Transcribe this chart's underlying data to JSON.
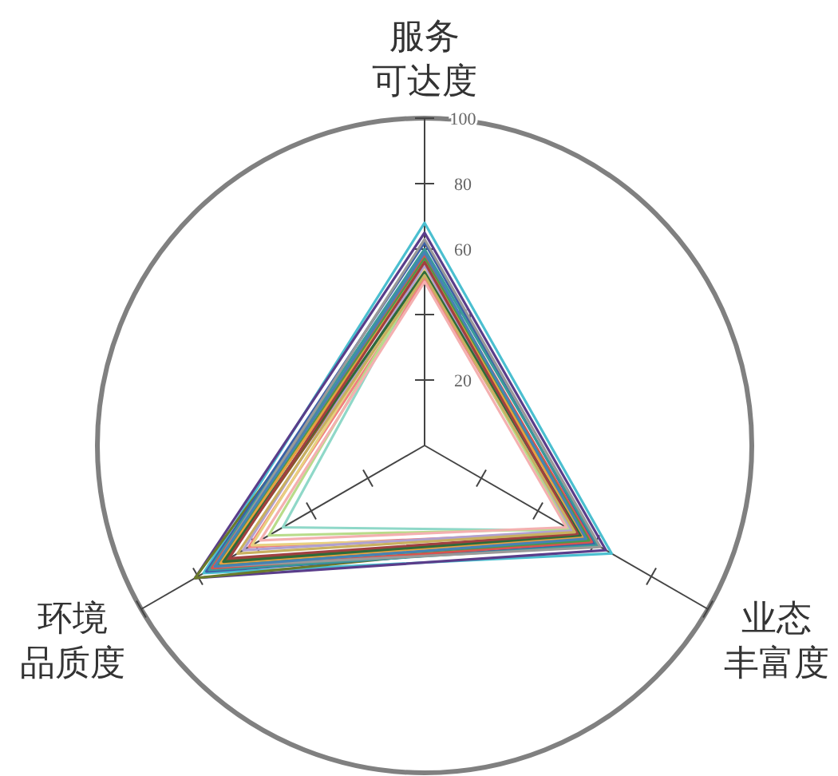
{
  "chart_data": {
    "type": "radar",
    "categories": [
      "服务可达度",
      "业态丰富度",
      "环境品质度"
    ],
    "ylim": [
      0,
      100
    ],
    "yticks": [
      20,
      40,
      60,
      80,
      100
    ],
    "grid": false,
    "marker": "none",
    "series": [
      {
        "color": "#4bbfd0",
        "values": [
          68,
          66,
          78
        ]
      },
      {
        "color": "#5a3d8a",
        "values": [
          65,
          64,
          81
        ]
      },
      {
        "color": "#6b7a2a",
        "values": [
          55,
          57,
          81
        ]
      },
      {
        "color": "#3c5fa8",
        "values": [
          62,
          60,
          77
        ]
      },
      {
        "color": "#3a9a9a",
        "values": [
          60,
          61,
          76
        ]
      },
      {
        "color": "#d9534f",
        "values": [
          58,
          59,
          75
        ]
      },
      {
        "color": "#999999",
        "values": [
          63,
          62,
          74
        ]
      },
      {
        "color": "#4a9a4a",
        "values": [
          57,
          58,
          73
        ]
      },
      {
        "color": "#e8a040",
        "values": [
          56,
          56,
          72
        ]
      },
      {
        "color": "#8b5a2b",
        "values": [
          52,
          54,
          70
        ]
      },
      {
        "color": "#4682b4",
        "values": [
          59,
          57,
          74
        ]
      },
      {
        "color": "#f08080",
        "values": [
          51,
          53,
          62
        ]
      },
      {
        "color": "#8fd8c8",
        "values": [
          54,
          52,
          50
        ]
      },
      {
        "color": "#b8dc8a",
        "values": [
          53,
          51,
          55
        ]
      },
      {
        "color": "#f4b0b0",
        "values": [
          50,
          50,
          58
        ]
      },
      {
        "color": "#e8d080",
        "values": [
          54,
          55,
          61
        ]
      },
      {
        "color": "#b0a0d0",
        "values": [
          55,
          52,
          64
        ]
      },
      {
        "color": "#2e6b3a",
        "values": [
          53,
          55,
          71
        ]
      },
      {
        "color": "#a04040",
        "values": [
          56,
          54,
          69
        ]
      },
      {
        "color": "#c8b060",
        "values": [
          52,
          53,
          66
        ]
      }
    ]
  }
}
